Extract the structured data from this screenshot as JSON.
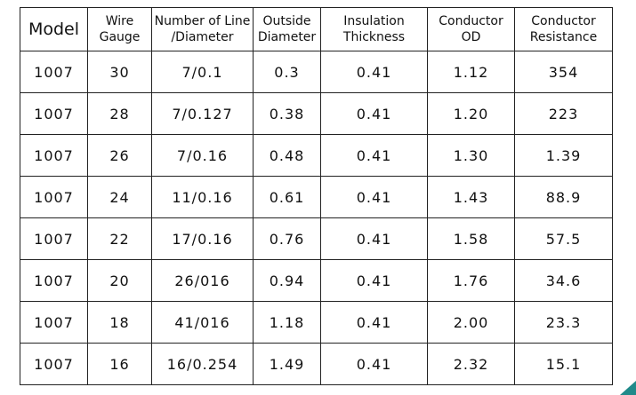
{
  "table": {
    "header": [
      [
        "Model"
      ],
      [
        "Wire",
        "Gauge"
      ],
      [
        "Number of Line",
        "/Diameter"
      ],
      [
        "Outside",
        "Diameter"
      ],
      [
        "Insulation",
        "Thickness"
      ],
      [
        "Conductor",
        "OD"
      ],
      [
        "Conductor",
        "Resistance"
      ]
    ],
    "rows": [
      [
        "1007",
        "30",
        "7/0.1",
        "0.3",
        "0.41",
        "1.12",
        "354"
      ],
      [
        "1007",
        "28",
        "7/0.127",
        "0.38",
        "0.41",
        "1.20",
        "223"
      ],
      [
        "1007",
        "26",
        "7/0.16",
        "0.48",
        "0.41",
        "1.30",
        "1.39"
      ],
      [
        "1007",
        "24",
        "11/0.16",
        "0.61",
        "0.41",
        "1.43",
        "88.9"
      ],
      [
        "1007",
        "22",
        "17/0.16",
        "0.76",
        "0.41",
        "1.58",
        "57.5"
      ],
      [
        "1007",
        "20",
        "26/016",
        "0.94",
        "0.41",
        "1.76",
        "34.6"
      ],
      [
        "1007",
        "18",
        "41/016",
        "1.18",
        "0.41",
        "2.00",
        "23.3"
      ],
      [
        "1007",
        "16",
        "16/0.254",
        "1.49",
        "0.41",
        "2.32",
        "15.1"
      ]
    ]
  }
}
